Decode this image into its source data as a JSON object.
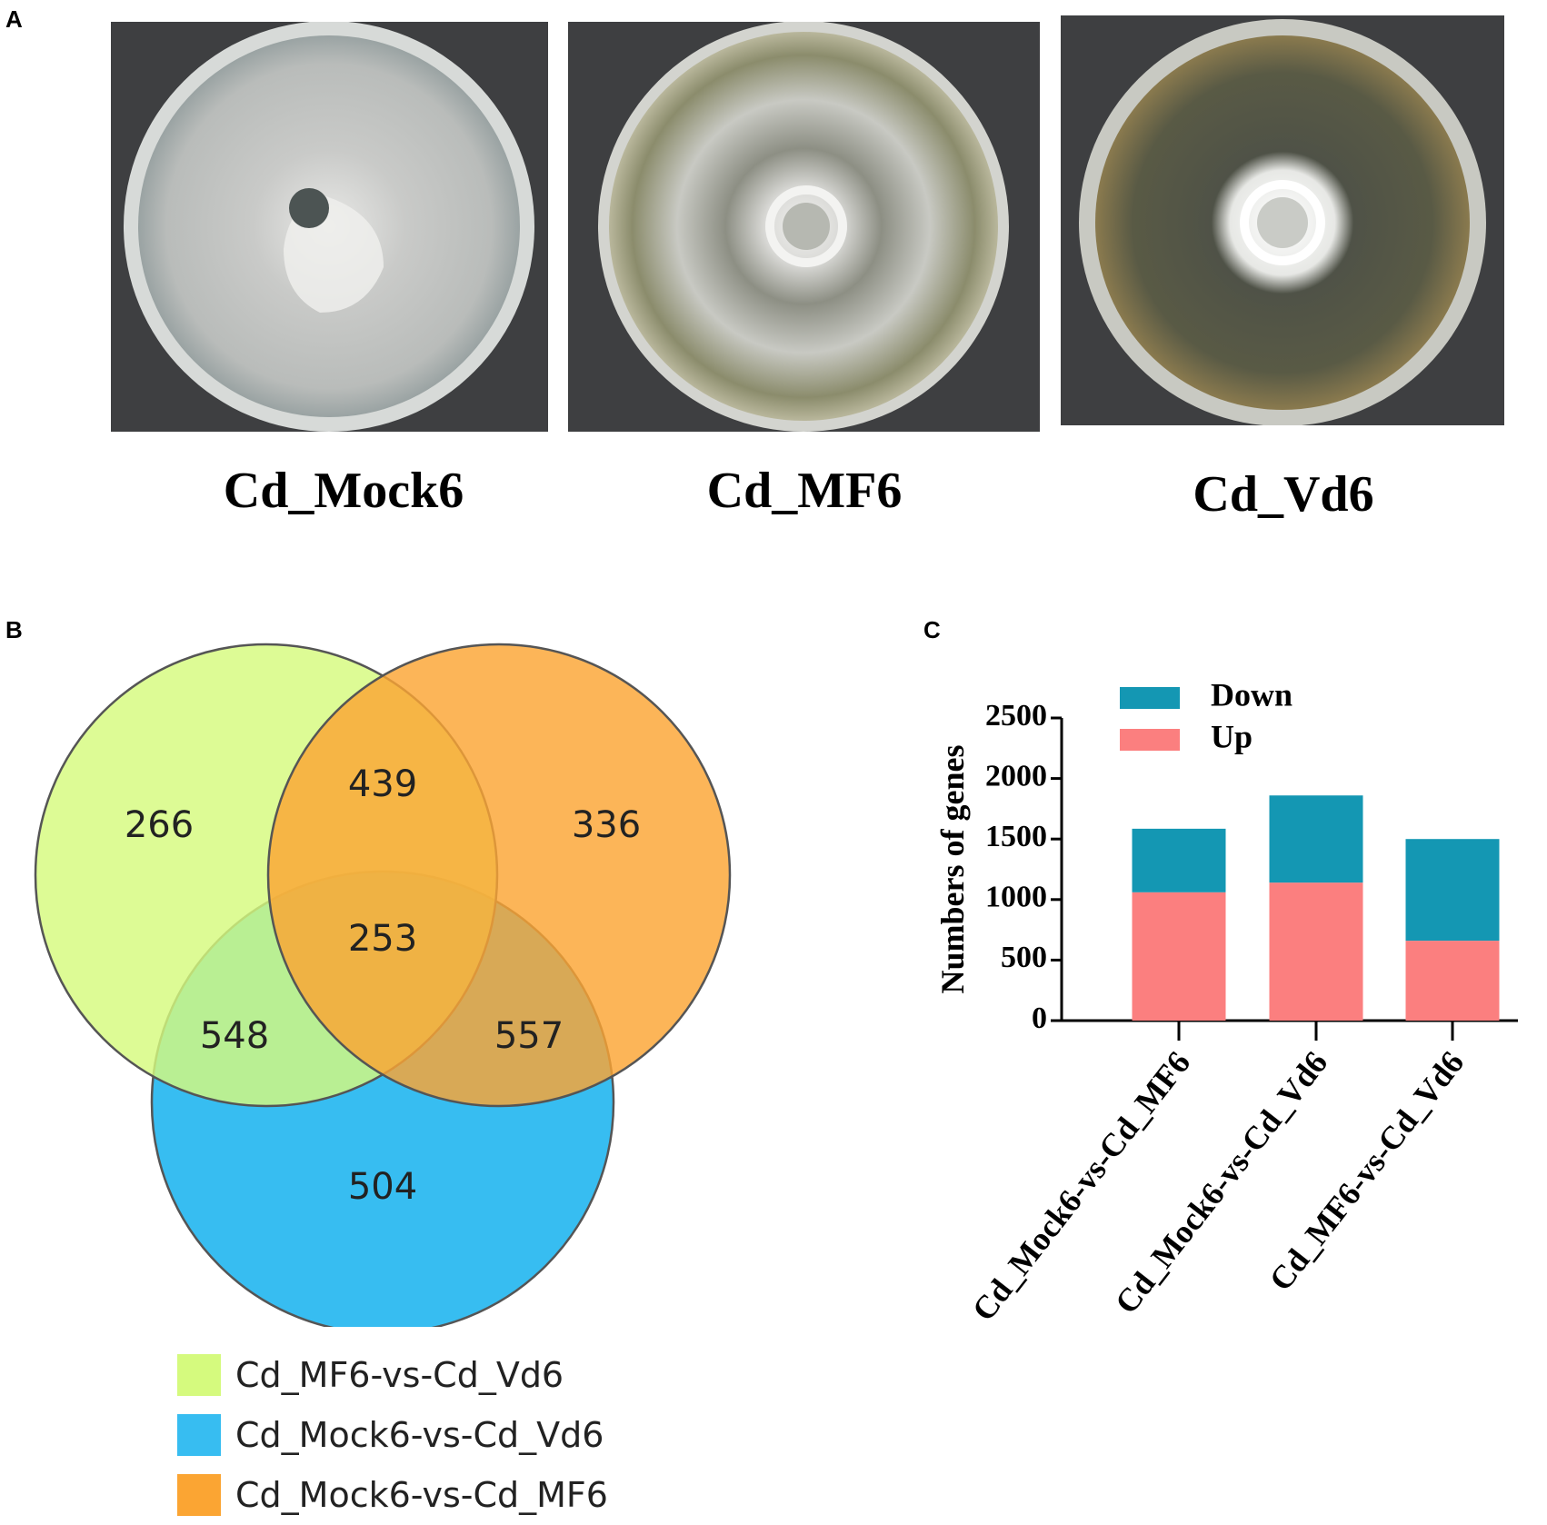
{
  "panel_labels": {
    "a": "A",
    "b": "B",
    "c": "C"
  },
  "photos": [
    {
      "label": "Cd_Mock6",
      "colony": "gray"
    },
    {
      "label": "Cd_MF6",
      "colony": "gray-olive"
    },
    {
      "label": "Cd_Vd6",
      "colony": "dark-olive"
    }
  ],
  "chart_data": [
    {
      "type": "venn",
      "sets": [
        {
          "name": "Cd_MF6-vs-Cd_Vd6",
          "color": "#d5fa7e"
        },
        {
          "name": "Cd_Mock6-vs-Cd_Vd6",
          "color": "#37bdf1"
        },
        {
          "name": "Cd_Mock6-vs-Cd_MF6",
          "color": "#fba533"
        }
      ],
      "regions": [
        {
          "sets": [
            "Cd_MF6-vs-Cd_Vd6"
          ],
          "value": 266
        },
        {
          "sets": [
            "Cd_Mock6-vs-Cd_MF6"
          ],
          "value": 336
        },
        {
          "sets": [
            "Cd_Mock6-vs-Cd_Vd6"
          ],
          "value": 504
        },
        {
          "sets": [
            "Cd_MF6-vs-Cd_Vd6",
            "Cd_Mock6-vs-Cd_MF6"
          ],
          "value": 439
        },
        {
          "sets": [
            "Cd_MF6-vs-Cd_Vd6",
            "Cd_Mock6-vs-Cd_Vd6"
          ],
          "value": 548
        },
        {
          "sets": [
            "Cd_Mock6-vs-Cd_Vd6",
            "Cd_Mock6-vs-Cd_MF6"
          ],
          "value": 557
        },
        {
          "sets": [
            "Cd_MF6-vs-Cd_Vd6",
            "Cd_Mock6-vs-Cd_Vd6",
            "Cd_Mock6-vs-Cd_MF6"
          ],
          "value": 253
        }
      ]
    },
    {
      "type": "bar",
      "stacked": true,
      "categories": [
        "Cd_Mock6-vs-Cd_MF6",
        "Cd_Mock6-vs-Cd_Vd6",
        "Cd_MF6-vs-Cd_Vd6"
      ],
      "series": [
        {
          "name": "Up",
          "values": [
            1060,
            1140,
            660
          ],
          "color": "#fb7f7f"
        },
        {
          "name": "Down",
          "values": [
            525,
            720,
            840
          ],
          "color": "#1497b3"
        }
      ],
      "ylabel": "Numbers of genes",
      "ylim": [
        0,
        2500
      ],
      "yticks": [
        0,
        500,
        1000,
        1500,
        2000,
        2500
      ],
      "legend": [
        "Down",
        "Up"
      ],
      "legend_position": "top-left"
    }
  ]
}
